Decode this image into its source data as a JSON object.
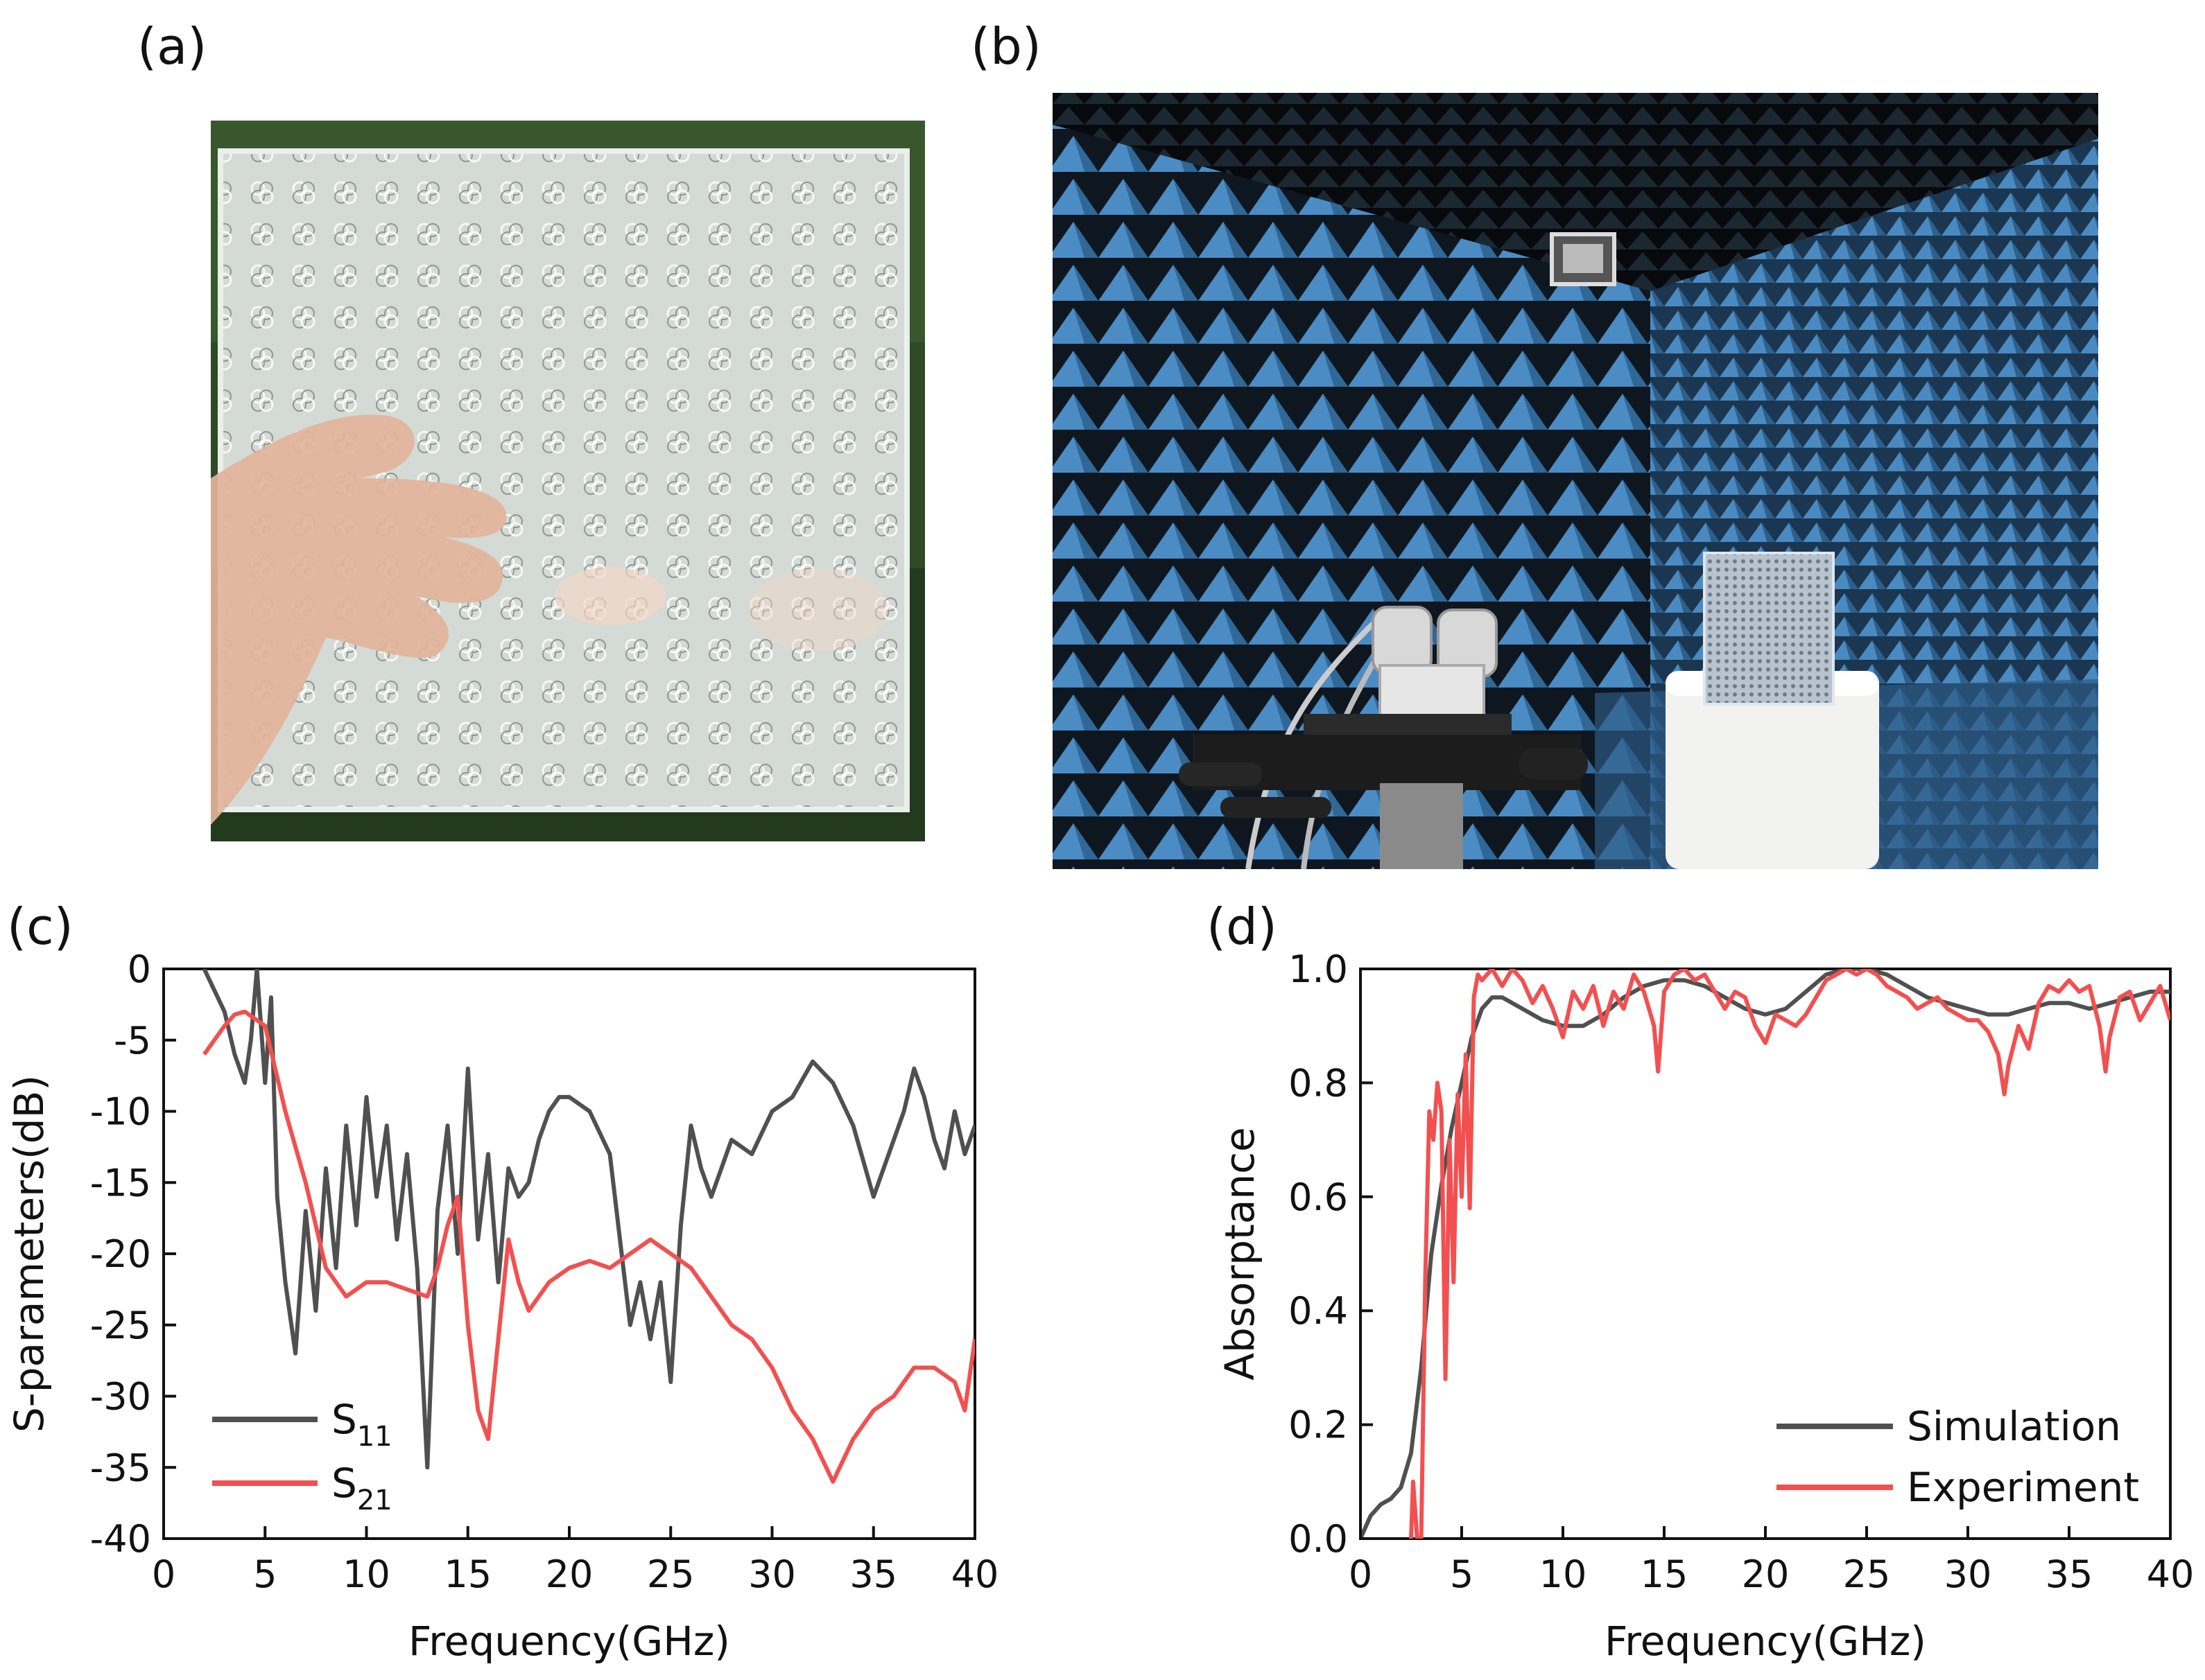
{
  "panels": {
    "a": {
      "label": "(a)"
    },
    "b": {
      "label": "(b)"
    },
    "c": {
      "label": "(c)"
    },
    "d": {
      "label": "(d)"
    }
  },
  "colors": {
    "s11": "#505050",
    "s21": "#f25050",
    "simulation": "#505050",
    "experiment": "#f25050",
    "photo_grass": "#2f4a25",
    "absorber_blue": "#3e7fb5",
    "chamber_dark": "#101820"
  },
  "chart_data": [
    {
      "panel": "c",
      "type": "line",
      "xlabel": "Frequency(GHz)",
      "ylabel": "S-parameters(dB)",
      "xlim": [
        0,
        40
      ],
      "ylim": [
        -40,
        0
      ],
      "xticks": [
        0,
        5,
        10,
        15,
        20,
        25,
        30,
        35,
        40
      ],
      "yticks": [
        0,
        -5,
        -10,
        -15,
        -20,
        -25,
        -30,
        -35,
        -40
      ],
      "legend": {
        "placement": "bottom-left"
      },
      "series": [
        {
          "name": "S11",
          "legend_main": "S",
          "legend_sub": "11",
          "color": "#505050",
          "x": [
            2.0,
            2.5,
            3.0,
            3.5,
            4.0,
            4.3,
            4.6,
            5.0,
            5.3,
            5.6,
            6.0,
            6.5,
            7.0,
            7.5,
            8.0,
            8.5,
            9.0,
            9.5,
            10.0,
            10.5,
            11.0,
            11.5,
            12.0,
            12.5,
            13.0,
            13.5,
            14.0,
            14.5,
            15.0,
            15.5,
            16.0,
            16.5,
            17.0,
            17.5,
            18.0,
            18.5,
            19.0,
            19.5,
            20.0,
            21.0,
            22.0,
            22.5,
            23.0,
            23.5,
            24.0,
            24.5,
            25.0,
            25.5,
            26.0,
            26.5,
            27.0,
            28.0,
            29.0,
            30.0,
            31.0,
            32.0,
            33.0,
            34.0,
            35.0,
            35.5,
            36.0,
            36.5,
            37.0,
            37.5,
            38.0,
            38.5,
            39.0,
            39.5,
            40.0
          ],
          "y": [
            0.0,
            -1.5,
            -3.0,
            -6.0,
            -8.0,
            -5.0,
            0.0,
            -8.0,
            -2.0,
            -16.0,
            -22.0,
            -27.0,
            -17.0,
            -24.0,
            -14.0,
            -21.0,
            -11.0,
            -18.0,
            -9.0,
            -16.0,
            -11.0,
            -19.0,
            -13.0,
            -21.0,
            -35.0,
            -17.0,
            -11.0,
            -20.0,
            -7.0,
            -19.0,
            -13.0,
            -22.0,
            -14.0,
            -16.0,
            -15.0,
            -12.0,
            -10.0,
            -9.0,
            -9.0,
            -10.0,
            -13.0,
            -19.0,
            -25.0,
            -22.0,
            -26.0,
            -22.0,
            -29.0,
            -18.0,
            -11.0,
            -14.0,
            -16.0,
            -12.0,
            -13.0,
            -10.0,
            -9.0,
            -6.5,
            -8.0,
            -11.0,
            -16.0,
            -14.0,
            -12.0,
            -10.0,
            -7.0,
            -9.0,
            -12.0,
            -14.0,
            -10.0,
            -13.0,
            -11.0
          ]
        },
        {
          "name": "S21",
          "legend_main": "S",
          "legend_sub": "21",
          "color": "#f25050",
          "x": [
            2.0,
            2.5,
            3.0,
            3.5,
            4.0,
            4.5,
            5.0,
            5.5,
            6.0,
            7.0,
            8.0,
            9.0,
            10.0,
            11.0,
            12.0,
            13.0,
            13.5,
            14.0,
            14.5,
            15.0,
            15.5,
            16.0,
            16.5,
            17.0,
            17.5,
            18.0,
            19.0,
            20.0,
            21.0,
            22.0,
            23.0,
            24.0,
            25.0,
            26.0,
            27.0,
            28.0,
            29.0,
            30.0,
            31.0,
            32.0,
            33.0,
            34.0,
            35.0,
            36.0,
            37.0,
            38.0,
            39.0,
            39.5,
            40.0
          ],
          "y": [
            -6.0,
            -5.0,
            -4.0,
            -3.2,
            -3.0,
            -3.5,
            -4.0,
            -7.0,
            -10.0,
            -15.0,
            -21.0,
            -23.0,
            -22.0,
            -22.0,
            -22.5,
            -23.0,
            -21.0,
            -18.0,
            -16.0,
            -25.0,
            -31.0,
            -33.0,
            -26.0,
            -19.0,
            -22.0,
            -24.0,
            -22.0,
            -21.0,
            -20.5,
            -21.0,
            -20.0,
            -19.0,
            -20.0,
            -21.0,
            -23.0,
            -25.0,
            -26.0,
            -28.0,
            -31.0,
            -33.0,
            -36.0,
            -33.0,
            -31.0,
            -30.0,
            -28.0,
            -28.0,
            -29.0,
            -31.0,
            -26.0
          ]
        }
      ]
    },
    {
      "panel": "d",
      "type": "line",
      "xlabel": "Frequency(GHz)",
      "ylabel": "Absorptance",
      "xlim": [
        0,
        40
      ],
      "ylim": [
        0.0,
        1.0
      ],
      "xticks": [
        0,
        5,
        10,
        15,
        20,
        25,
        30,
        35,
        40
      ],
      "yticks": [
        0.0,
        0.2,
        0.4,
        0.6,
        0.8,
        1.0
      ],
      "ytick_labels": [
        "0.0",
        "0.2",
        "0.4",
        "0.6",
        "0.8",
        "1.0"
      ],
      "legend": {
        "placement": "bottom-right"
      },
      "series": [
        {
          "name": "Simulation",
          "color": "#505050",
          "x": [
            0.0,
            0.5,
            1.0,
            1.5,
            2.0,
            2.5,
            3.0,
            3.5,
            4.0,
            4.5,
            5.0,
            5.5,
            6.0,
            6.5,
            7.0,
            7.5,
            8.0,
            9.0,
            10.0,
            11.0,
            12.0,
            13.0,
            14.0,
            15.0,
            16.0,
            17.0,
            18.0,
            19.0,
            20.0,
            21.0,
            22.0,
            23.0,
            24.0,
            25.0,
            26.0,
            27.0,
            28.0,
            29.0,
            30.0,
            31.0,
            32.0,
            33.0,
            34.0,
            35.0,
            36.0,
            37.0,
            38.0,
            39.0,
            40.0
          ],
          "y": [
            0.0,
            0.04,
            0.06,
            0.07,
            0.09,
            0.15,
            0.3,
            0.5,
            0.62,
            0.72,
            0.8,
            0.88,
            0.93,
            0.95,
            0.95,
            0.94,
            0.93,
            0.91,
            0.9,
            0.9,
            0.92,
            0.95,
            0.97,
            0.98,
            0.98,
            0.97,
            0.95,
            0.93,
            0.92,
            0.93,
            0.96,
            0.99,
            1.0,
            1.0,
            0.99,
            0.97,
            0.95,
            0.94,
            0.93,
            0.92,
            0.92,
            0.93,
            0.94,
            0.94,
            0.93,
            0.94,
            0.95,
            0.96,
            0.96
          ]
        },
        {
          "name": "Experiment",
          "color": "#f25050",
          "x": [
            2.5,
            2.6,
            2.8,
            3.0,
            3.2,
            3.4,
            3.6,
            3.8,
            4.0,
            4.2,
            4.4,
            4.6,
            4.8,
            5.0,
            5.2,
            5.4,
            5.6,
            5.8,
            6.0,
            6.5,
            7.0,
            7.5,
            8.0,
            8.5,
            9.0,
            9.5,
            10.0,
            10.5,
            11.0,
            11.5,
            12.0,
            12.5,
            13.0,
            13.5,
            14.0,
            14.5,
            14.7,
            15.0,
            15.5,
            16.0,
            16.5,
            17.0,
            17.5,
            18.0,
            18.5,
            19.0,
            19.5,
            20.0,
            20.5,
            21.0,
            21.5,
            22.0,
            22.5,
            23.0,
            23.5,
            24.0,
            24.5,
            25.0,
            25.5,
            26.0,
            26.5,
            27.0,
            27.5,
            28.0,
            28.5,
            29.0,
            29.5,
            30.0,
            30.5,
            31.0,
            31.5,
            31.8,
            32.0,
            32.5,
            33.0,
            33.5,
            34.0,
            34.5,
            35.0,
            35.5,
            36.0,
            36.5,
            36.8,
            37.0,
            37.5,
            38.0,
            38.5,
            39.0,
            39.5,
            40.0
          ],
          "y": [
            0.0,
            0.1,
            0.0,
            0.0,
            0.45,
            0.75,
            0.7,
            0.8,
            0.75,
            0.28,
            0.7,
            0.45,
            0.78,
            0.6,
            0.85,
            0.58,
            0.95,
            0.99,
            0.98,
            1.0,
            0.97,
            1.0,
            0.98,
            0.94,
            0.97,
            0.93,
            0.88,
            0.96,
            0.93,
            0.97,
            0.9,
            0.96,
            0.93,
            0.99,
            0.96,
            0.9,
            0.82,
            0.96,
            0.99,
            1.0,
            0.98,
            0.99,
            0.96,
            0.93,
            0.96,
            0.95,
            0.9,
            0.87,
            0.92,
            0.91,
            0.9,
            0.92,
            0.95,
            0.98,
            0.99,
            1.0,
            0.99,
            1.0,
            0.99,
            0.97,
            0.96,
            0.95,
            0.93,
            0.94,
            0.95,
            0.93,
            0.92,
            0.91,
            0.91,
            0.89,
            0.85,
            0.78,
            0.83,
            0.9,
            0.86,
            0.94,
            0.97,
            0.96,
            0.98,
            0.96,
            0.97,
            0.9,
            0.82,
            0.88,
            0.95,
            0.96,
            0.91,
            0.94,
            0.97,
            0.91
          ]
        }
      ]
    }
  ]
}
